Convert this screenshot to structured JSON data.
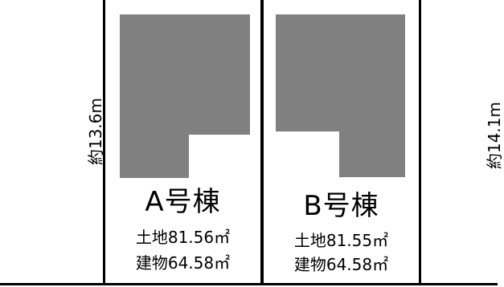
{
  "colors": {
    "building": "#808080",
    "line": "#000000",
    "background": "#ffffff"
  },
  "dimensions": {
    "left": "約13.6m",
    "right": "約14.1m"
  },
  "lots": [
    {
      "name": "A号棟",
      "land": "土地81.56㎡",
      "building": "建物64.58㎡"
    },
    {
      "name": "B号棟",
      "land": "土地81.55㎡",
      "building": "建物64.58㎡"
    }
  ]
}
